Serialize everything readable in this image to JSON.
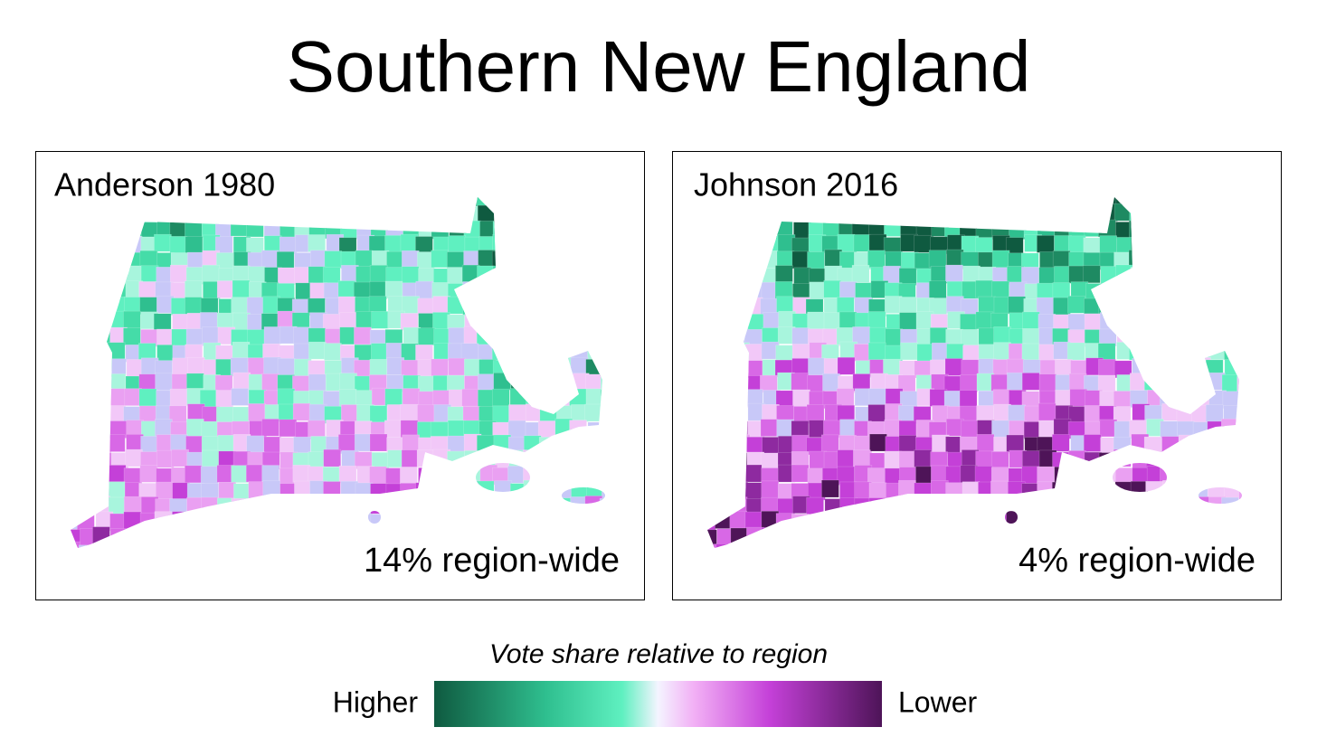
{
  "title": "Southern New England",
  "panels": [
    {
      "label": "Anderson 1980",
      "note": "14% region-wide"
    },
    {
      "label": "Johnson 2016",
      "note": "4% region-wide"
    }
  ],
  "legend": {
    "title": "Vote share relative to region",
    "left_label": "Higher",
    "right_label": "Lower"
  }
}
